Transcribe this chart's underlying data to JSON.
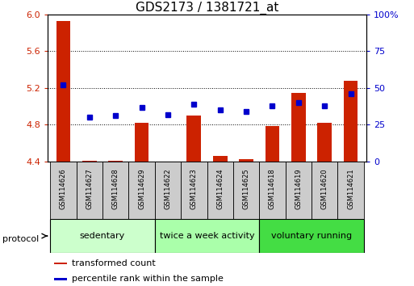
{
  "title": "GDS2173 / 1381721_at",
  "samples": [
    "GSM114626",
    "GSM114627",
    "GSM114628",
    "GSM114629",
    "GSM114622",
    "GSM114623",
    "GSM114624",
    "GSM114625",
    "GSM114618",
    "GSM114619",
    "GSM114620",
    "GSM114621"
  ],
  "transformed_count": [
    5.93,
    4.41,
    4.41,
    4.82,
    4.4,
    4.9,
    4.46,
    4.43,
    4.79,
    5.15,
    4.82,
    5.28
  ],
  "percentile_rank": [
    52,
    30,
    31,
    37,
    32,
    39,
    35,
    34,
    38,
    40,
    38,
    46
  ],
  "ylim_left": [
    4.4,
    6.0
  ],
  "ylim_right": [
    0,
    100
  ],
  "yticks_left": [
    4.4,
    4.8,
    5.2,
    5.6,
    6.0
  ],
  "yticks_right": [
    0,
    25,
    50,
    75,
    100
  ],
  "groups": [
    {
      "label": "sedentary",
      "indices": [
        0,
        1,
        2,
        3
      ],
      "color": "#ccffcc"
    },
    {
      "label": "twice a week activity",
      "indices": [
        4,
        5,
        6,
        7
      ],
      "color": "#aaffaa"
    },
    {
      "label": "voluntary running",
      "indices": [
        8,
        9,
        10,
        11
      ],
      "color": "#44dd44"
    }
  ],
  "bar_color": "#cc2200",
  "dot_color": "#0000cc",
  "grid_color": "#000000",
  "bar_width": 0.55,
  "bar_bottom": 4.4,
  "legend_items": [
    {
      "label": "transformed count",
      "color": "#cc2200"
    },
    {
      "label": "percentile rank within the sample",
      "color": "#0000cc"
    }
  ],
  "protocol_label": "protocol",
  "ylabel_left_color": "#cc2200",
  "ylabel_right_color": "#0000cc",
  "title_fontsize": 11,
  "tick_fontsize": 8,
  "sample_fontsize": 6,
  "group_fontsize": 8,
  "legend_fontsize": 8
}
